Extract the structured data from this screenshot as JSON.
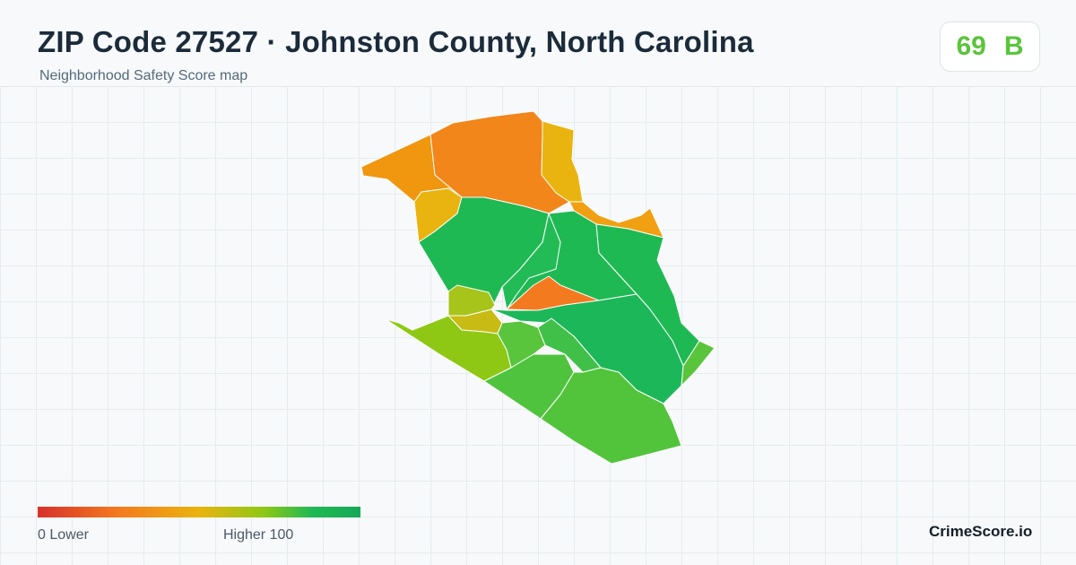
{
  "header": {
    "title": "ZIP Code 27527 · Johnston County, North Carolina",
    "subtitle": "Neighborhood Safety Score map"
  },
  "score": {
    "value": "69",
    "grade": "B",
    "color": "#5ac43c"
  },
  "legend": {
    "min_label": "0  Lower",
    "max_label": "Higher  100",
    "colors": [
      "#d7302b",
      "#f47a1f",
      "#e9b40f",
      "#8ec815",
      "#1fb954",
      "#16a857"
    ]
  },
  "map": {
    "regions": [
      {
        "name": "northwest-area",
        "color": "#f0960f"
      },
      {
        "name": "north-area",
        "color": "#f2861a"
      },
      {
        "name": "northeast-strip",
        "color": "#e9b40f"
      },
      {
        "name": "west-pocket",
        "color": "#e9b40f"
      },
      {
        "name": "east-notch",
        "color": "#f0a012"
      },
      {
        "name": "central-area",
        "color": "#1fb954"
      },
      {
        "name": "central-narrow",
        "color": "#1fb954"
      },
      {
        "name": "east-area",
        "color": "#1fb954"
      },
      {
        "name": "center-north",
        "color": "#22bb55"
      },
      {
        "name": "central-hotspot",
        "color": "#f47a1f"
      },
      {
        "name": "southeast-area",
        "color": "#1cb759"
      },
      {
        "name": "east-tip",
        "color": "#5ac43c"
      },
      {
        "name": "southwest-pocket",
        "color": "#a6c41a"
      },
      {
        "name": "southwest-small",
        "color": "#c8bb14"
      },
      {
        "name": "southwest-strip",
        "color": "#8ec815"
      },
      {
        "name": "south-center",
        "color": "#58c53c"
      },
      {
        "name": "south-center-east",
        "color": "#40c048"
      },
      {
        "name": "south-middle",
        "color": "#4fc33e"
      },
      {
        "name": "south-area",
        "color": "#52c43c"
      }
    ]
  },
  "brand": "CrimeScore.io"
}
